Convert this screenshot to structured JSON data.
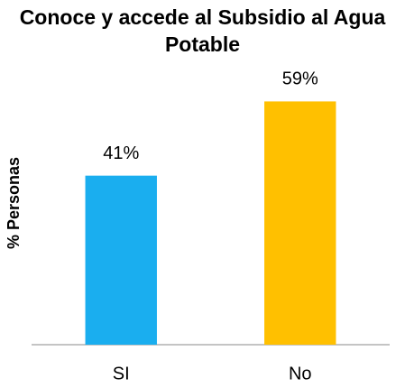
{
  "chart_data": {
    "type": "bar",
    "title": "Conoce y accede al Subsidio al Agua Potable",
    "y_label": "% Personas",
    "categories": [
      "SI",
      "No"
    ],
    "values": [
      41,
      59
    ],
    "value_labels": [
      "41%",
      "59%"
    ],
    "colors": [
      "#1aaeef",
      "#ffc000"
    ],
    "ylim": [
      0,
      65
    ],
    "grid": false
  }
}
